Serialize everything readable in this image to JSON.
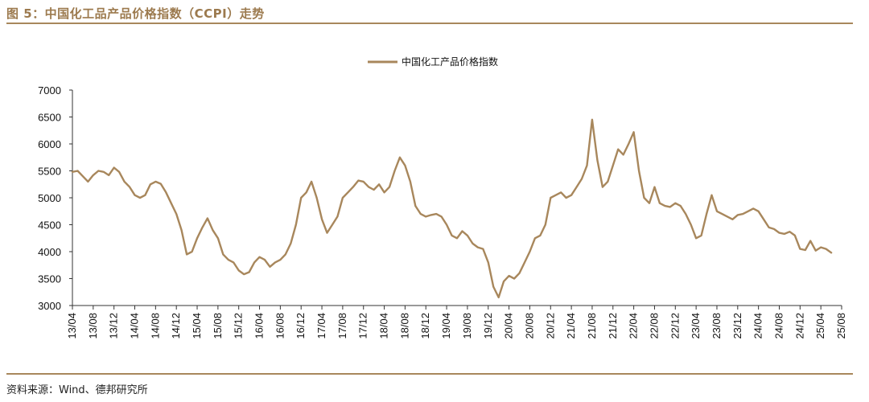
{
  "figure": {
    "title": "图 5：中国化工品产品价格指数（CCPI）走势",
    "source": "资料来源：Wind、德邦研究所"
  },
  "colors": {
    "line": "#a8875c",
    "accent": "#a8875c",
    "title": "#9c7a4e"
  },
  "chart_data": {
    "type": "line",
    "title": "",
    "xlabel": "",
    "ylabel": "",
    "ylim": [
      3000,
      7000
    ],
    "yticks": [
      3000,
      3500,
      4000,
      4500,
      5000,
      5500,
      6000,
      6500,
      7000
    ],
    "grid": false,
    "legend_position": "top-center",
    "x_ticks": [
      "13/04",
      "13/08",
      "13/12",
      "14/04",
      "14/08",
      "14/12",
      "15/04",
      "15/08",
      "15/12",
      "16/04",
      "16/08",
      "16/12",
      "17/04",
      "17/08",
      "17/12",
      "18/04",
      "18/08",
      "18/12",
      "19/04",
      "19/08",
      "19/12",
      "20/04",
      "20/08",
      "20/12",
      "21/04",
      "21/08",
      "21/12",
      "22/04",
      "22/08",
      "22/12",
      "23/04",
      "23/08",
      "23/12",
      "24/04",
      "24/08",
      "24/12",
      "25/04",
      "25/08"
    ],
    "series": [
      {
        "name": "中国化工产品价格指数",
        "points": [
          [
            0,
            5480
          ],
          [
            0.25,
            5500
          ],
          [
            0.5,
            5400
          ],
          [
            0.75,
            5300
          ],
          [
            1,
            5420
          ],
          [
            1.25,
            5500
          ],
          [
            1.5,
            5480
          ],
          [
            1.75,
            5420
          ],
          [
            2,
            5560
          ],
          [
            2.25,
            5480
          ],
          [
            2.5,
            5300
          ],
          [
            2.75,
            5200
          ],
          [
            3,
            5050
          ],
          [
            3.25,
            5000
          ],
          [
            3.5,
            5050
          ],
          [
            3.75,
            5250
          ],
          [
            4,
            5300
          ],
          [
            4.25,
            5260
          ],
          [
            4.5,
            5100
          ],
          [
            4.75,
            4900
          ],
          [
            5,
            4700
          ],
          [
            5.25,
            4400
          ],
          [
            5.5,
            3950
          ],
          [
            5.75,
            4000
          ],
          [
            6,
            4250
          ],
          [
            6.25,
            4450
          ],
          [
            6.5,
            4620
          ],
          [
            6.75,
            4400
          ],
          [
            7,
            4250
          ],
          [
            7.25,
            3950
          ],
          [
            7.5,
            3850
          ],
          [
            7.75,
            3800
          ],
          [
            8,
            3650
          ],
          [
            8.25,
            3580
          ],
          [
            8.5,
            3620
          ],
          [
            8.75,
            3800
          ],
          [
            9,
            3900
          ],
          [
            9.25,
            3850
          ],
          [
            9.5,
            3720
          ],
          [
            9.75,
            3800
          ],
          [
            10,
            3850
          ],
          [
            10.25,
            3950
          ],
          [
            10.5,
            4150
          ],
          [
            10.75,
            4500
          ],
          [
            11,
            5000
          ],
          [
            11.25,
            5100
          ],
          [
            11.5,
            5300
          ],
          [
            11.75,
            5000
          ],
          [
            12,
            4600
          ],
          [
            12.25,
            4350
          ],
          [
            12.5,
            4500
          ],
          [
            12.75,
            4650
          ],
          [
            13,
            5000
          ],
          [
            13.25,
            5100
          ],
          [
            13.5,
            5200
          ],
          [
            13.75,
            5320
          ],
          [
            14,
            5300
          ],
          [
            14.25,
            5200
          ],
          [
            14.5,
            5150
          ],
          [
            14.75,
            5250
          ],
          [
            15,
            5100
          ],
          [
            15.25,
            5200
          ],
          [
            15.5,
            5500
          ],
          [
            15.75,
            5750
          ],
          [
            16,
            5600
          ],
          [
            16.25,
            5300
          ],
          [
            16.5,
            4850
          ],
          [
            16.75,
            4700
          ],
          [
            17,
            4650
          ],
          [
            17.25,
            4680
          ],
          [
            17.5,
            4700
          ],
          [
            17.75,
            4650
          ],
          [
            18,
            4500
          ],
          [
            18.25,
            4300
          ],
          [
            18.5,
            4250
          ],
          [
            18.75,
            4380
          ],
          [
            19,
            4300
          ],
          [
            19.25,
            4150
          ],
          [
            19.5,
            4080
          ],
          [
            19.75,
            4050
          ],
          [
            20,
            3800
          ],
          [
            20.25,
            3350
          ],
          [
            20.5,
            3150
          ],
          [
            20.75,
            3450
          ],
          [
            21,
            3550
          ],
          [
            21.25,
            3500
          ],
          [
            21.5,
            3600
          ],
          [
            21.75,
            3800
          ],
          [
            22,
            4000
          ],
          [
            22.25,
            4250
          ],
          [
            22.5,
            4300
          ],
          [
            22.75,
            4500
          ],
          [
            23,
            5000
          ],
          [
            23.25,
            5050
          ],
          [
            23.5,
            5100
          ],
          [
            23.75,
            5000
          ],
          [
            24,
            5050
          ],
          [
            24.25,
            5200
          ],
          [
            24.5,
            5350
          ],
          [
            24.75,
            5600
          ],
          [
            25,
            6450
          ],
          [
            25.25,
            5700
          ],
          [
            25.5,
            5200
          ],
          [
            25.75,
            5300
          ],
          [
            26,
            5600
          ],
          [
            26.25,
            5900
          ],
          [
            26.5,
            5800
          ],
          [
            26.75,
            6000
          ],
          [
            27,
            6220
          ],
          [
            27.25,
            5500
          ],
          [
            27.5,
            5000
          ],
          [
            27.75,
            4900
          ],
          [
            28,
            5200
          ],
          [
            28.25,
            4900
          ],
          [
            28.5,
            4850
          ],
          [
            28.75,
            4830
          ],
          [
            29,
            4900
          ],
          [
            29.25,
            4850
          ],
          [
            29.5,
            4700
          ],
          [
            29.75,
            4500
          ],
          [
            30,
            4250
          ],
          [
            30.25,
            4300
          ],
          [
            30.5,
            4700
          ],
          [
            30.75,
            5050
          ],
          [
            31,
            4750
          ],
          [
            31.25,
            4700
          ],
          [
            31.5,
            4650
          ],
          [
            31.75,
            4600
          ],
          [
            32,
            4680
          ],
          [
            32.25,
            4700
          ],
          [
            32.5,
            4750
          ],
          [
            32.75,
            4800
          ],
          [
            33,
            4750
          ],
          [
            33.25,
            4600
          ],
          [
            33.5,
            4450
          ],
          [
            33.75,
            4420
          ],
          [
            34,
            4350
          ],
          [
            34.25,
            4330
          ],
          [
            34.5,
            4370
          ],
          [
            34.75,
            4300
          ],
          [
            35,
            4050
          ],
          [
            35.25,
            4030
          ],
          [
            35.5,
            4200
          ],
          [
            35.75,
            4020
          ],
          [
            36,
            4080
          ],
          [
            36.25,
            4050
          ],
          [
            36.5,
            3980
          ]
        ]
      }
    ]
  }
}
